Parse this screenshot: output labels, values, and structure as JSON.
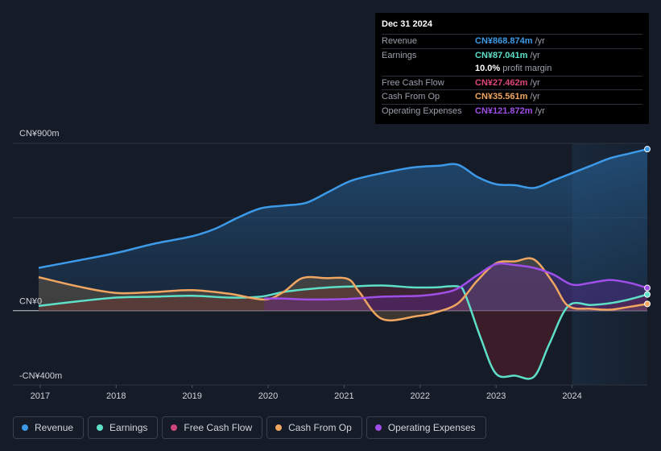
{
  "tooltip": {
    "date": "Dec 31 2024",
    "rows": [
      {
        "label": "Revenue",
        "value": "CN¥868.874m",
        "unit": "/yr",
        "color": "#3d9ae8"
      },
      {
        "label": "Earnings",
        "value": "CN¥87.041m",
        "unit": "/yr",
        "color": "#5ee0c8"
      },
      {
        "label": "",
        "value": "10.0%",
        "unit": "profit margin",
        "color": "#ffffff"
      },
      {
        "label": "Free Cash Flow",
        "value": "CN¥27.462m",
        "unit": "/yr",
        "color": "#e0457b"
      },
      {
        "label": "Cash From Op",
        "value": "CN¥35.561m",
        "unit": "/yr",
        "color": "#f0a660"
      },
      {
        "label": "Operating Expenses",
        "value": "CN¥121.872m",
        "unit": "/yr",
        "color": "#a04ee8"
      }
    ]
  },
  "legend": [
    {
      "label": "Revenue",
      "color": "#3d9ae8"
    },
    {
      "label": "Earnings",
      "color": "#5ee0c8"
    },
    {
      "label": "Free Cash Flow",
      "color": "#d0457b"
    },
    {
      "label": "Cash From Op",
      "color": "#f0a660"
    },
    {
      "label": "Operating Expenses",
      "color": "#a04ee8"
    }
  ],
  "chart_data": {
    "type": "area",
    "title": "",
    "ylim": [
      -400,
      900
    ],
    "y_tick_labels": [
      "CN¥900m",
      "CN¥0",
      "-CN¥400m"
    ],
    "y_tick_values": [
      900,
      0,
      -400
    ],
    "x_tick_labels": [
      "2017",
      "2018",
      "2019",
      "2020",
      "2021",
      "2022",
      "2023",
      "2024"
    ],
    "x_tick_values": [
      2017,
      2018,
      2019,
      2020,
      2021,
      2022,
      2023,
      2024
    ],
    "xlim": [
      2016.98,
      2024.99
    ],
    "forecast_shade_start": 2024.0,
    "series": [
      {
        "name": "Revenue",
        "color": "#3d9ae8",
        "x": [
          2016.98,
          2017.5,
          2018.0,
          2018.5,
          2019.0,
          2019.3,
          2019.6,
          2019.9,
          2020.2,
          2020.5,
          2020.8,
          2021.1,
          2021.5,
          2021.9,
          2022.25,
          2022.5,
          2022.75,
          2023.0,
          2023.25,
          2023.5,
          2023.75,
          2024.0,
          2024.25,
          2024.5,
          2024.75,
          2024.99
        ],
        "y": [
          230,
          270,
          310,
          360,
          400,
          440,
          500,
          550,
          565,
          580,
          640,
          700,
          740,
          770,
          780,
          785,
          720,
          680,
          675,
          660,
          700,
          740,
          780,
          820,
          845,
          869
        ]
      },
      {
        "name": "Earnings",
        "color": "#5ee0c8",
        "x": [
          2016.98,
          2017.5,
          2018.0,
          2018.5,
          2019.0,
          2019.5,
          2019.9,
          2020.2,
          2020.5,
          2020.8,
          2021.1,
          2021.5,
          2021.9,
          2022.2,
          2022.5,
          2022.6,
          2022.8,
          2023.0,
          2023.25,
          2023.5,
          2023.7,
          2023.95,
          2024.25,
          2024.5,
          2024.75,
          2024.99
        ],
        "y": [
          25,
          50,
          70,
          75,
          80,
          70,
          75,
          100,
          115,
          125,
          130,
          135,
          125,
          125,
          130,
          80,
          -150,
          -340,
          -350,
          -355,
          -180,
          25,
          30,
          40,
          60,
          87
        ]
      },
      {
        "name": "Cash From Op",
        "color": "#f0a660",
        "x": [
          2016.98,
          2017.5,
          2018.0,
          2018.5,
          2019.0,
          2019.5,
          2019.95,
          2020.2,
          2020.45,
          2020.75,
          2021.05,
          2021.2,
          2021.5,
          2021.95,
          2022.2,
          2022.5,
          2022.75,
          2023.0,
          2023.25,
          2023.5,
          2023.75,
          2023.95,
          2024.25,
          2024.5,
          2024.75,
          2024.99
        ],
        "y": [
          180,
          130,
          95,
          100,
          110,
          90,
          60,
          100,
          175,
          175,
          170,
          100,
          -45,
          -30,
          -10,
          40,
          160,
          255,
          265,
          275,
          150,
          25,
          10,
          5,
          20,
          36
        ]
      },
      {
        "name": "Operating Expenses",
        "color": "#a04ee8",
        "x": [
          2019.95,
          2020.2,
          2020.5,
          2021.0,
          2021.5,
          2022.0,
          2022.3,
          2022.5,
          2022.75,
          2023.0,
          2023.25,
          2023.5,
          2023.75,
          2024.0,
          2024.25,
          2024.5,
          2024.75,
          2024.99
        ],
        "y": [
          65,
          65,
          60,
          62,
          75,
          80,
          95,
          120,
          190,
          250,
          245,
          230,
          195,
          140,
          150,
          165,
          150,
          122
        ]
      }
    ]
  }
}
